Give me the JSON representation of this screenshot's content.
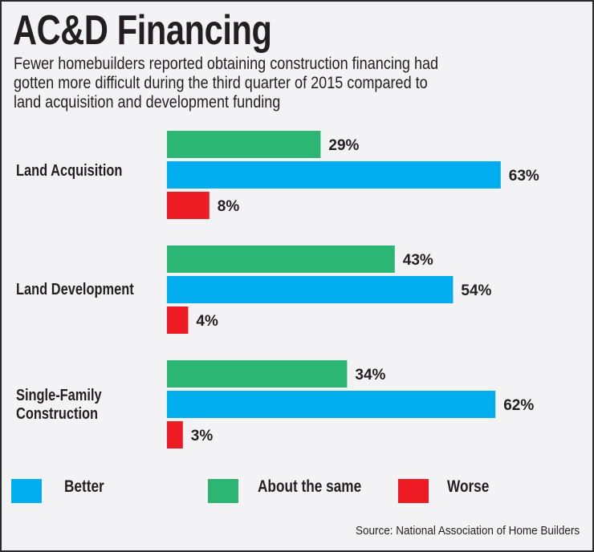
{
  "chart_data": {
    "type": "bar",
    "orientation": "horizontal",
    "title": "AC&D Financing",
    "subtitle_lines": [
      "Fewer homebuilders reported obtaining construction financing had",
      "gotten more difficult during the third quarter of 2015 compared to",
      "land acquisition and development funding"
    ],
    "categories": [
      "Land Acquisition",
      "Land Development",
      "Single-Family Construction"
    ],
    "category_lines": [
      [
        "Land Acquisition"
      ],
      [
        "Land Development"
      ],
      [
        "Single-Family",
        "Construction"
      ]
    ],
    "series": [
      {
        "name": "About the same",
        "color": "#2bb673",
        "values": [
          29,
          43,
          34
        ]
      },
      {
        "name": "Better",
        "color": "#00aeef",
        "values": [
          63,
          54,
          62
        ]
      },
      {
        "name": "Worse",
        "color": "#ed1c24",
        "values": [
          8,
          4,
          3
        ]
      }
    ],
    "value_suffix": "%",
    "legend": {
      "placement": "bottom",
      "order": [
        "Better",
        "About the same",
        "Worse"
      ]
    },
    "grid": false,
    "source": "Source: National Association of Home Builders"
  }
}
